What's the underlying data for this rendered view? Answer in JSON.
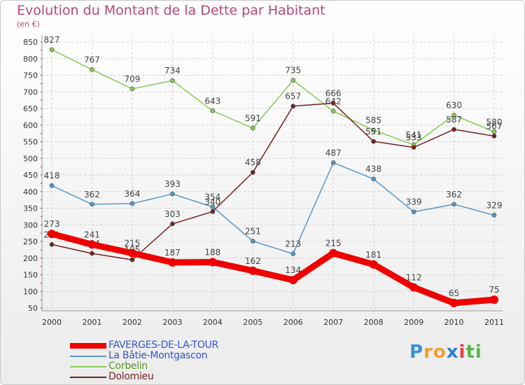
{
  "header": {
    "title": "Evolution du Montant de la Dette par Habitant",
    "subtitle": "(en €)"
  },
  "logo": {
    "letters": [
      "P",
      "r",
      "o",
      "x",
      "i",
      "t",
      "i"
    ],
    "colors": [
      "#3a8fd6",
      "#f0a030",
      "#f0a030",
      "#2a7fd0",
      "#e84040",
      "#5ab54a",
      "#5ab54a"
    ]
  },
  "chart_data": {
    "type": "line",
    "x": [
      "2000",
      "2001",
      "2002",
      "2003",
      "2004",
      "2005",
      "2006",
      "2007",
      "2008",
      "2009",
      "2010",
      "2011"
    ],
    "ylim": [
      50,
      850
    ],
    "yticks": [
      50,
      100,
      150,
      200,
      250,
      300,
      350,
      400,
      450,
      500,
      550,
      600,
      650,
      700,
      750,
      800,
      850
    ],
    "grid": true,
    "legend_position": "bottom-left",
    "series": [
      {
        "name": "FAVERGES-DE-LA-TOUR",
        "color": "#ee0000",
        "width": 9,
        "values": [
          273,
          241,
          215,
          187,
          188,
          162,
          134,
          215,
          181,
          112,
          65,
          75
        ]
      },
      {
        "name": "La Bâtie-Montgascon",
        "color": "#5599cc",
        "width": 1.5,
        "values": [
          418,
          362,
          364,
          393,
          354,
          251,
          213,
          487,
          438,
          339,
          362,
          329
        ]
      },
      {
        "name": "Corbelin",
        "color": "#88cc55",
        "width": 1.5,
        "values": [
          827,
          767,
          709,
          734,
          643,
          591,
          735,
          642,
          585,
          541,
          630,
          580
        ]
      },
      {
        "name": "Dolomieu",
        "color": "#772222",
        "width": 1.5,
        "values": [
          241,
          214,
          195,
          303,
          340,
          458,
          657,
          666,
          551,
          533,
          587,
          567
        ]
      }
    ]
  }
}
